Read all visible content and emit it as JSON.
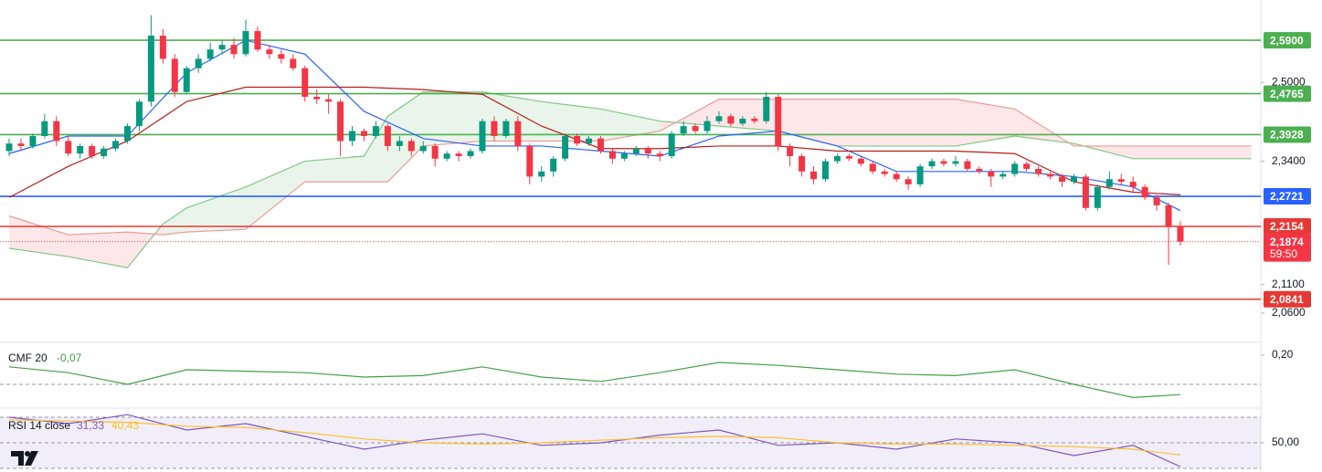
{
  "chart_data": [
    {
      "type": "candlestick",
      "log_scale": true,
      "ylim": [
        2.01,
        2.679
      ],
      "yticks": [
        {
          "value": 2.5,
          "label": "2,5000"
        },
        {
          "value": 2.34,
          "label": "2,3400"
        },
        {
          "value": 2.11,
          "label": "2,1100"
        },
        {
          "value": 2.06,
          "label": "2,0600"
        }
      ],
      "up_color": "#089981",
      "down_color": "#f23645",
      "ohlc": [
        [
          2.36,
          2.385,
          2.35,
          2.375
        ],
        [
          2.375,
          2.385,
          2.36,
          2.37
        ],
        [
          2.37,
          2.395,
          2.365,
          2.39
        ],
        [
          2.39,
          2.435,
          2.385,
          2.42
        ],
        [
          2.42,
          2.43,
          2.37,
          2.38
        ],
        [
          2.38,
          2.39,
          2.35,
          2.355
        ],
        [
          2.355,
          2.375,
          2.345,
          2.37
        ],
        [
          2.37,
          2.375,
          2.345,
          2.35
        ],
        [
          2.35,
          2.37,
          2.345,
          2.365
        ],
        [
          2.365,
          2.385,
          2.36,
          2.38
        ],
        [
          2.38,
          2.415,
          2.375,
          2.41
        ],
        [
          2.41,
          2.465,
          2.4,
          2.46
        ],
        [
          2.46,
          2.645,
          2.45,
          2.6
        ],
        [
          2.6,
          2.615,
          2.54,
          2.55
        ],
        [
          2.55,
          2.56,
          2.47,
          2.48
        ],
        [
          2.48,
          2.535,
          2.475,
          2.53
        ],
        [
          2.53,
          2.56,
          2.52,
          2.55
        ],
        [
          2.55,
          2.585,
          2.545,
          2.57
        ],
        [
          2.57,
          2.59,
          2.56,
          2.58
        ],
        [
          2.58,
          2.595,
          2.55,
          2.56
        ],
        [
          2.56,
          2.635,
          2.555,
          2.61
        ],
        [
          2.61,
          2.62,
          2.565,
          2.57
        ],
        [
          2.57,
          2.58,
          2.55,
          2.56
        ],
        [
          2.56,
          2.57,
          2.54,
          2.55
        ],
        [
          2.55,
          2.56,
          2.525,
          2.53
        ],
        [
          2.53,
          2.535,
          2.46,
          2.47
        ],
        [
          2.47,
          2.485,
          2.455,
          2.465
        ],
        [
          2.465,
          2.475,
          2.435,
          2.46
        ],
        [
          2.46,
          2.465,
          2.35,
          2.38
        ],
        [
          2.38,
          2.41,
          2.37,
          2.4
        ],
        [
          2.4,
          2.405,
          2.38,
          2.39
        ],
        [
          2.39,
          2.42,
          2.385,
          2.41
        ],
        [
          2.41,
          2.415,
          2.36,
          2.37
        ],
        [
          2.37,
          2.39,
          2.36,
          2.38
        ],
        [
          2.38,
          2.385,
          2.35,
          2.36
        ],
        [
          2.36,
          2.38,
          2.355,
          2.37
        ],
        [
          2.37,
          2.375,
          2.33,
          2.345
        ],
        [
          2.345,
          2.36,
          2.34,
          2.355
        ],
        [
          2.355,
          2.36,
          2.34,
          2.35
        ],
        [
          2.35,
          2.365,
          2.345,
          2.36
        ],
        [
          2.36,
          2.425,
          2.355,
          2.42
        ],
        [
          2.42,
          2.43,
          2.38,
          2.39
        ],
        [
          2.39,
          2.425,
          2.385,
          2.42
        ],
        [
          2.42,
          2.43,
          2.36,
          2.37
        ],
        [
          2.37,
          2.375,
          2.295,
          2.31
        ],
        [
          2.31,
          2.33,
          2.3,
          2.32
        ],
        [
          2.32,
          2.35,
          2.31,
          2.345
        ],
        [
          2.345,
          2.395,
          2.34,
          2.39
        ],
        [
          2.39,
          2.395,
          2.37,
          2.375
        ],
        [
          2.375,
          2.39,
          2.37,
          2.385
        ],
        [
          2.385,
          2.39,
          2.355,
          2.36
        ],
        [
          2.36,
          2.365,
          2.335,
          2.345
        ],
        [
          2.345,
          2.36,
          2.34,
          2.355
        ],
        [
          2.355,
          2.37,
          2.35,
          2.365
        ],
        [
          2.365,
          2.37,
          2.345,
          2.355
        ],
        [
          2.355,
          2.36,
          2.34,
          2.35
        ],
        [
          2.35,
          2.4,
          2.345,
          2.395
        ],
        [
          2.395,
          2.42,
          2.39,
          2.41
        ],
        [
          2.41,
          2.415,
          2.395,
          2.4
        ],
        [
          2.4,
          2.43,
          2.395,
          2.42
        ],
        [
          2.42,
          2.44,
          2.415,
          2.43
        ],
        [
          2.43,
          2.435,
          2.41,
          2.415
        ],
        [
          2.415,
          2.43,
          2.41,
          2.425
        ],
        [
          2.425,
          2.43,
          2.415,
          2.42
        ],
        [
          2.42,
          2.48,
          2.415,
          2.47
        ],
        [
          2.47,
          2.475,
          2.36,
          2.37
        ],
        [
          2.37,
          2.375,
          2.33,
          2.35
        ],
        [
          2.35,
          2.355,
          2.31,
          2.32
        ],
        [
          2.32,
          2.33,
          2.295,
          2.305
        ],
        [
          2.305,
          2.345,
          2.3,
          2.34
        ],
        [
          2.34,
          2.355,
          2.335,
          2.35
        ],
        [
          2.35,
          2.355,
          2.34,
          2.345
        ],
        [
          2.345,
          2.35,
          2.33,
          2.335
        ],
        [
          2.335,
          2.34,
          2.315,
          2.32
        ],
        [
          2.32,
          2.325,
          2.31,
          2.315
        ],
        [
          2.315,
          2.32,
          2.3,
          2.305
        ],
        [
          2.305,
          2.31,
          2.285,
          2.295
        ],
        [
          2.295,
          2.335,
          2.29,
          2.33
        ],
        [
          2.33,
          2.345,
          2.325,
          2.34
        ],
        [
          2.34,
          2.345,
          2.33,
          2.335
        ],
        [
          2.335,
          2.35,
          2.33,
          2.34
        ],
        [
          2.34,
          2.345,
          2.32,
          2.325
        ],
        [
          2.325,
          2.33,
          2.315,
          2.32
        ],
        [
          2.32,
          2.325,
          2.29,
          2.31
        ],
        [
          2.31,
          2.32,
          2.305,
          2.315
        ],
        [
          2.315,
          2.34,
          2.31,
          2.335
        ],
        [
          2.335,
          2.34,
          2.32,
          2.325
        ],
        [
          2.325,
          2.33,
          2.31,
          2.315
        ],
        [
          2.315,
          2.32,
          2.305,
          2.31
        ],
        [
          2.31,
          2.315,
          2.29,
          2.3
        ],
        [
          2.3,
          2.315,
          2.295,
          2.31
        ],
        [
          2.31,
          2.315,
          2.245,
          2.25
        ],
        [
          2.25,
          2.295,
          2.245,
          2.29
        ],
        [
          2.29,
          2.32,
          2.285,
          2.305
        ],
        [
          2.305,
          2.315,
          2.295,
          2.3
        ],
        [
          2.3,
          2.31,
          2.28,
          2.29
        ],
        [
          2.29,
          2.295,
          2.265,
          2.27
        ],
        [
          2.27,
          2.275,
          2.245,
          2.255
        ],
        [
          2.255,
          2.26,
          2.145,
          2.215
        ],
        [
          2.215,
          2.225,
          2.18,
          2.1874
        ]
      ],
      "cloud": {
        "x": [
          0,
          5,
          10,
          13,
          15,
          20,
          25,
          30,
          32,
          35,
          40,
          45,
          50,
          55,
          60,
          65,
          70,
          75,
          80,
          85,
          90,
          95,
          100,
          105
        ],
        "span_a": [
          2.175,
          2.16,
          2.14,
          2.22,
          2.25,
          2.29,
          2.34,
          2.35,
          2.43,
          2.48,
          2.48,
          2.46,
          2.445,
          2.42,
          2.41,
          2.4,
          2.37,
          2.37,
          2.37,
          2.39,
          2.375,
          2.345,
          2.345,
          2.345
        ],
        "span_b": [
          2.235,
          2.2,
          2.205,
          2.2,
          2.205,
          2.21,
          2.3,
          2.3,
          2.3,
          2.37,
          2.38,
          2.38,
          2.38,
          2.4,
          2.465,
          2.465,
          2.465,
          2.465,
          2.465,
          2.445,
          2.37,
          2.37,
          2.37,
          2.37
        ],
        "a_color": "#81c784",
        "b_color": "#ef9a9a",
        "up_fill": "#4caf50",
        "down_fill": "#f23645"
      },
      "series": [
        {
          "color": "#2962ff",
          "x": [
            0,
            5,
            10,
            15,
            20,
            25,
            30,
            35,
            40,
            45,
            50,
            55,
            60,
            65,
            70,
            75,
            80,
            85,
            90,
            95,
            99
          ],
          "values": [
            2.355,
            2.39,
            2.39,
            2.52,
            2.59,
            2.56,
            2.44,
            2.385,
            2.37,
            2.37,
            2.36,
            2.35,
            2.39,
            2.4,
            2.37,
            2.32,
            2.32,
            2.32,
            2.31,
            2.29,
            2.245
          ]
        },
        {
          "color": "#b71c1c",
          "x": [
            0,
            5,
            10,
            15,
            20,
            25,
            30,
            35,
            40,
            45,
            50,
            55,
            60,
            65,
            70,
            75,
            80,
            85,
            90,
            95,
            99
          ],
          "values": [
            2.27,
            2.33,
            2.38,
            2.46,
            2.49,
            2.49,
            2.49,
            2.485,
            2.475,
            2.41,
            2.365,
            2.365,
            2.37,
            2.37,
            2.36,
            2.36,
            2.36,
            2.355,
            2.3,
            2.28,
            2.275
          ]
        }
      ],
      "levels": [
        {
          "value": 2.59,
          "label": "2,5900",
          "color": "#4caf50"
        },
        {
          "value": 2.4765,
          "label": "2,4765",
          "color": "#4caf50"
        },
        {
          "value": 2.3928,
          "label": "2,3928",
          "color": "#4caf50"
        },
        {
          "value": 2.2721,
          "label": "2,2721",
          "color": "#2962ff"
        },
        {
          "value": 2.2154,
          "label": "2,2154",
          "color": "#e53935"
        },
        {
          "value": 2.0841,
          "label": "2,0841",
          "color": "#e53935"
        }
      ],
      "current_price": {
        "value": 2.1874,
        "label": "2,1874",
        "countdown": "59:50",
        "color": "#f23645"
      }
    },
    {
      "type": "line",
      "title": "CMF 20",
      "ylim": [
        -0.1625,
        0.2875
      ],
      "yticks": [
        {
          "value": 0.2,
          "label": "0,20"
        }
      ],
      "reference_lines": [
        0
      ],
      "series": [
        {
          "color": "#43a047",
          "x": [
            0,
            5,
            10,
            15,
            20,
            25,
            30,
            35,
            40,
            45,
            50,
            55,
            60,
            65,
            70,
            75,
            80,
            85,
            90,
            95,
            99
          ],
          "values": [
            0.12,
            0.08,
            0.0,
            0.1,
            0.09,
            0.08,
            0.05,
            0.06,
            0.12,
            0.05,
            0.02,
            0.08,
            0.15,
            0.13,
            0.1,
            0.07,
            0.06,
            0.1,
            0.0,
            -0.09,
            -0.07
          ],
          "last_value_label": "-0,07"
        }
      ]
    },
    {
      "type": "line",
      "title": "RSI 14 close",
      "ylim": [
        27.14,
        77.14
      ],
      "yticks": [
        {
          "value": 50,
          "label": "50,00"
        }
      ],
      "reference_lines": [
        70,
        50,
        30
      ],
      "band": [
        30,
        70
      ],
      "band_color": "#7e57c2",
      "series": [
        {
          "color": "#7e57c2",
          "x": [
            0,
            5,
            10,
            15,
            20,
            25,
            30,
            35,
            40,
            45,
            50,
            55,
            60,
            65,
            70,
            75,
            80,
            85,
            90,
            95,
            99
          ],
          "values": [
            70,
            65,
            72,
            60,
            65,
            55,
            45,
            52,
            57,
            48,
            50,
            56,
            60,
            48,
            50,
            45,
            53,
            50,
            40,
            48,
            31.33
          ],
          "last_value_label": "31,33"
        },
        {
          "color": "#fbc02d",
          "x": [
            0,
            5,
            10,
            15,
            20,
            25,
            30,
            35,
            40,
            45,
            50,
            55,
            60,
            65,
            70,
            75,
            80,
            85,
            90,
            95,
            99
          ],
          "values": [
            68,
            67,
            66,
            63,
            62,
            58,
            53,
            50,
            49,
            50,
            52,
            54,
            55,
            54,
            50,
            49,
            49,
            48,
            47,
            45,
            40.43
          ],
          "last_value_label": "40,43"
        }
      ]
    }
  ]
}
